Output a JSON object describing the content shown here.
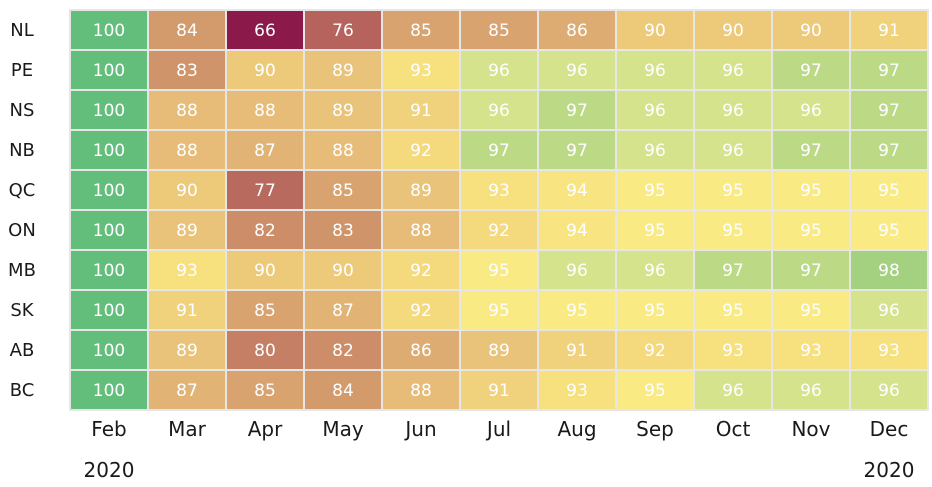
{
  "chart_data": {
    "type": "heatmap",
    "rows": [
      "NL",
      "PE",
      "NS",
      "NB",
      "QC",
      "ON",
      "MB",
      "SK",
      "AB",
      "BC"
    ],
    "columns": [
      "Feb",
      "Mar",
      "Apr",
      "May",
      "Jun",
      "Jul",
      "Aug",
      "Sep",
      "Oct",
      "Nov",
      "Dec"
    ],
    "year_labels": {
      "start": "2020",
      "end": "2020"
    },
    "values": [
      [
        100,
        84,
        66,
        76,
        85,
        85,
        86,
        90,
        90,
        90,
        91
      ],
      [
        100,
        83,
        90,
        89,
        93,
        96,
        96,
        96,
        96,
        97,
        97
      ],
      [
        100,
        88,
        88,
        89,
        91,
        96,
        97,
        96,
        96,
        96,
        97
      ],
      [
        100,
        88,
        87,
        88,
        92,
        97,
        97,
        96,
        96,
        97,
        97
      ],
      [
        100,
        90,
        77,
        85,
        89,
        93,
        94,
        95,
        95,
        95,
        95
      ],
      [
        100,
        89,
        82,
        83,
        88,
        92,
        94,
        95,
        95,
        95,
        95
      ],
      [
        100,
        93,
        90,
        90,
        92,
        95,
        96,
        96,
        97,
        97,
        98
      ],
      [
        100,
        91,
        85,
        87,
        92,
        95,
        95,
        95,
        95,
        95,
        96
      ],
      [
        100,
        89,
        80,
        82,
        86,
        89,
        91,
        92,
        93,
        93,
        93
      ],
      [
        100,
        87,
        85,
        84,
        88,
        91,
        93,
        95,
        96,
        96,
        96
      ]
    ],
    "colors": {
      "max_cell": "#63be7b",
      "scale": [
        {
          "value": 66,
          "color": "#8b1a4a"
        },
        {
          "value": 76,
          "color": "#b5635c"
        },
        {
          "value": 84,
          "color": "#d39b6c"
        },
        {
          "value": 88,
          "color": "#e6bc78"
        },
        {
          "value": 93,
          "color": "#f7e07e"
        },
        {
          "value": 95,
          "color": "#f9ea84"
        },
        {
          "value": 96,
          "color": "#d4e38c"
        },
        {
          "value": 98,
          "color": "#a3d17f"
        }
      ],
      "grid_line": "#e6e6e6"
    }
  }
}
